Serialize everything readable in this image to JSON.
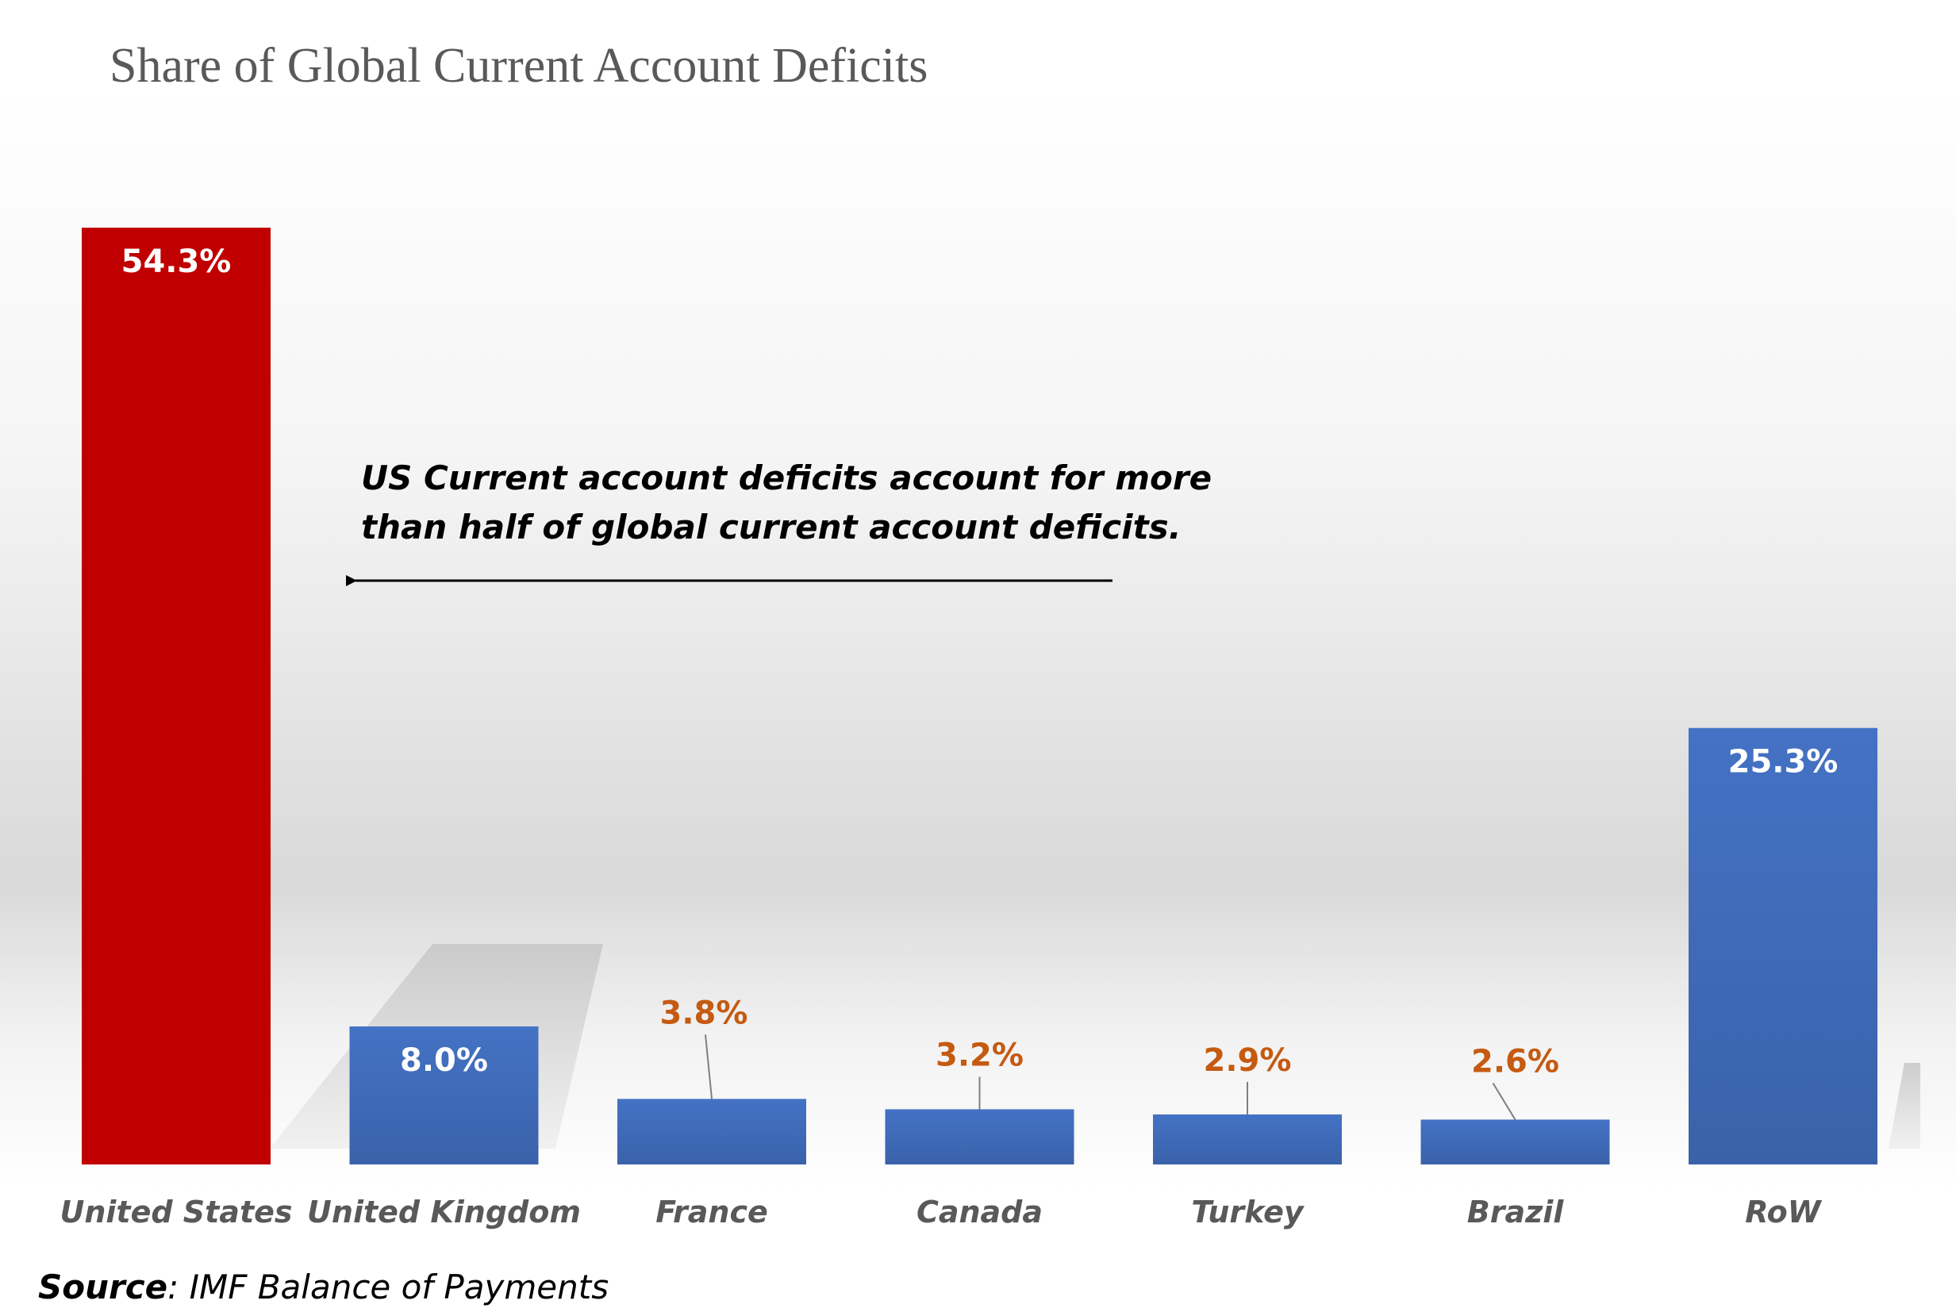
{
  "chart_data": {
    "type": "bar",
    "title": "Share of Global Current Account Deficits",
    "categories": [
      "United States",
      "United Kingdom",
      "France",
      "Canada",
      "Turkey",
      "Brazil",
      "RoW"
    ],
    "values": [
      54.3,
      8.0,
      3.8,
      3.2,
      2.9,
      2.6,
      25.3
    ],
    "data_labels": [
      "54.3%",
      "8.0%",
      "3.8%",
      "3.2%",
      "2.9%",
      "2.6%",
      "25.3%"
    ],
    "unit": "%",
    "ylim": [
      0,
      54.3
    ],
    "grid": false,
    "legend": "none",
    "annotation": "US Current account deficits account for more than half of global current account deficits.",
    "colors": {
      "highlight_bar": "#c00000",
      "bar": "#4472c4",
      "bar_dark": "#2f5597",
      "inside_label": "#ffffff",
      "outside_label": "#c55a11"
    }
  },
  "source": {
    "label": "Source",
    "text": ": IMF Balance of Payments"
  }
}
